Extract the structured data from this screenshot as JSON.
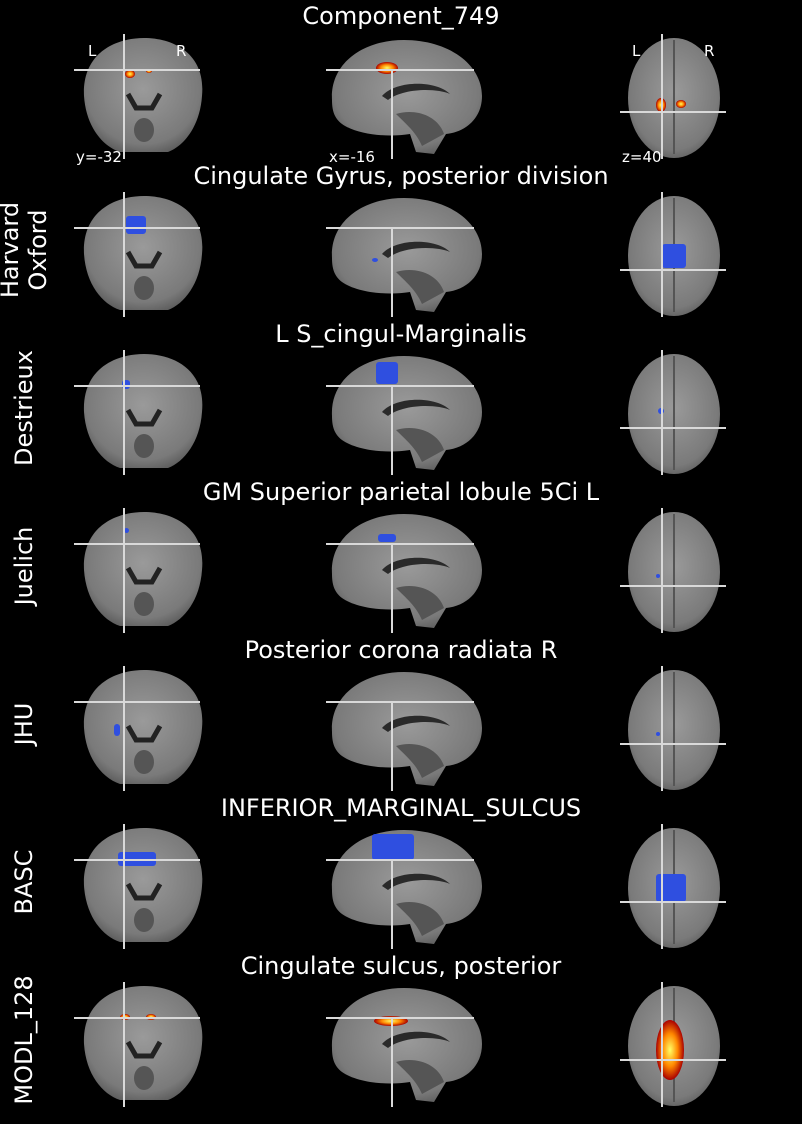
{
  "main": {
    "title": "Component_749",
    "orientation": {
      "left": "L",
      "right": "R"
    },
    "coords": {
      "coronal": "y=-32",
      "sagittal": "x=-16",
      "axial": "z=40"
    }
  },
  "rows": [
    {
      "atlas": "",
      "region": "Component_749",
      "overlay": "hot"
    },
    {
      "atlas": "Harvard\nOxford",
      "region": "Cingulate Gyrus, posterior division",
      "overlay": "blue"
    },
    {
      "atlas": "Destrieux",
      "region": "L S_cingul-Marginalis",
      "overlay": "blue"
    },
    {
      "atlas": "Juelich",
      "region": "GM Superior parietal lobule 5Ci L",
      "overlay": "blue"
    },
    {
      "atlas": "JHU",
      "region": "Posterior corona radiata R",
      "overlay": "blue"
    },
    {
      "atlas": "BASC",
      "region": "INFERIOR_MARGINAL_SULCUS",
      "overlay": "blue"
    },
    {
      "atlas": "MODL_128",
      "region": "Cingulate sulcus, posterior",
      "overlay": "hot"
    }
  ],
  "colors": {
    "background": "#000000",
    "brain": "#8c8c8c",
    "crosshair": "#d9d9d9",
    "atlas_overlay": "#2f4fe0",
    "hot_core": "#ffff66",
    "hot_mid": "#ff8800",
    "hot_edge": "#aa0000"
  }
}
